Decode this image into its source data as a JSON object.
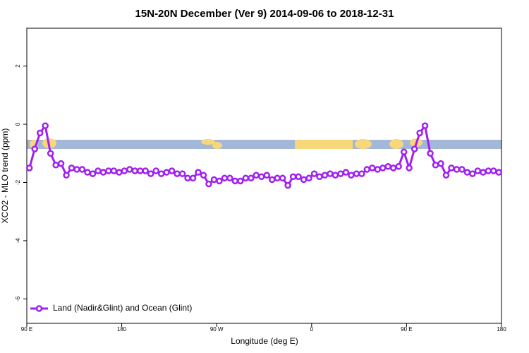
{
  "chart_data": {
    "type": "line",
    "title": "15N-20N December (Ver 9)   2014-09-06 to 2018-12-31",
    "x_label": "Longitude (deg E)",
    "y_label": "XCO2 - MLO trend (ppm)",
    "xlim": [
      90,
      540
    ],
    "xticks": [
      {
        "value": 90,
        "label": "90 E"
      },
      180,
      {
        "value": 270,
        "label": "90 W"
      },
      {
        "value": 360,
        "label": "0"
      },
      {
        "value": 450,
        "label": "90 E"
      },
      {
        "value": 540,
        "label": "180"
      }
    ],
    "ylim": [
      -6.84,
      3.3
    ],
    "yticks": [
      -6,
      -4,
      -2,
      0,
      2
    ],
    "legend": "bottom-left",
    "x": [
      92.5,
      97.5,
      102.5,
      107.5,
      112.5,
      117.5,
      122.5,
      127.5,
      132.5,
      137.5,
      142.5,
      147.5,
      152.5,
      157.5,
      162.5,
      167.5,
      172.5,
      177.5,
      182.5,
      187.5,
      192.5,
      197.5,
      202.5,
      207.5,
      212.5,
      217.5,
      222.5,
      227.5,
      232.5,
      237.5,
      242.5,
      247.5,
      252.5,
      257.5,
      262.5,
      267.5,
      272.5,
      277.5,
      282.5,
      287.5,
      292.5,
      297.5,
      302.5,
      307.5,
      312.5,
      317.5,
      322.5,
      327.5,
      332.5,
      337.5,
      342.5,
      347.5,
      352.5,
      357.5,
      362.5,
      367.5,
      372.5,
      377.5,
      382.5,
      387.5,
      392.5,
      397.5,
      402.5,
      407.5,
      412.5,
      417.5,
      422.5,
      427.5,
      432.5,
      437.5,
      442.5,
      447.5,
      452.5,
      457.5,
      462.5,
      467.5,
      472.5,
      477.5,
      482.5,
      487.5,
      492.5,
      497.5,
      502.5,
      507.5,
      512.5,
      517.5,
      522.5,
      527.5,
      532.5,
      537.5
    ],
    "series": [
      {
        "name": "Land (Nadir&Glint) and Ocean (Glint)",
        "color": "#a020f0",
        "values": [
          -1.5,
          -0.85,
          -0.3,
          -0.05,
          -1.0,
          -1.4,
          -1.35,
          -1.75,
          -1.5,
          -1.55,
          -1.55,
          -1.65,
          -1.7,
          -1.6,
          -1.65,
          -1.6,
          -1.6,
          -1.65,
          -1.6,
          -1.55,
          -1.6,
          -1.6,
          -1.6,
          -1.7,
          -1.6,
          -1.7,
          -1.65,
          -1.6,
          -1.7,
          -1.7,
          -1.85,
          -1.85,
          -1.65,
          -1.75,
          -2.05,
          -1.9,
          -1.95,
          -1.85,
          -1.85,
          -1.95,
          -1.95,
          -1.85,
          -1.85,
          -1.75,
          -1.8,
          -1.75,
          -1.9,
          -1.85,
          -1.85,
          -2.1,
          -1.8,
          -1.8,
          -1.9,
          -1.85,
          -1.7,
          -1.8,
          -1.75,
          -1.7,
          -1.75,
          -1.7,
          -1.65,
          -1.75,
          -1.7,
          -1.7,
          -1.55,
          -1.5,
          -1.55,
          -1.5,
          -1.45,
          -1.5,
          -1.45,
          -0.95,
          -1.5,
          -0.85,
          -0.3,
          -0.05,
          -1.0,
          -1.4,
          -1.35,
          -1.75,
          -1.5,
          -1.55,
          -1.55,
          -1.65,
          -1.7,
          -1.6,
          -1.65,
          -1.6,
          -1.6,
          -1.65
        ]
      }
    ]
  }
}
